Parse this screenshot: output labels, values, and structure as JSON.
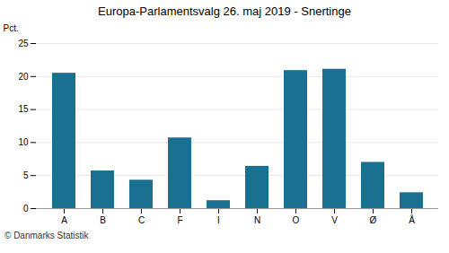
{
  "chart_data": {
    "type": "bar",
    "title": "Europa-Parlamentsvalg 26. maj 2019 - Snertinge",
    "categories": [
      "A",
      "B",
      "C",
      "F",
      "I",
      "N",
      "O",
      "V",
      "Ø",
      "Å"
    ],
    "values": [
      20.5,
      5.7,
      4.3,
      10.7,
      1.2,
      6.4,
      20.9,
      21.1,
      7.0,
      2.4
    ],
    "color": "#1a7090",
    "ylabel": "Pct.",
    "caption": "© Danmarks Statistik",
    "ylim": [
      0,
      25
    ],
    "yticks": [
      0,
      5,
      10,
      15,
      20,
      25
    ],
    "grid": true
  }
}
